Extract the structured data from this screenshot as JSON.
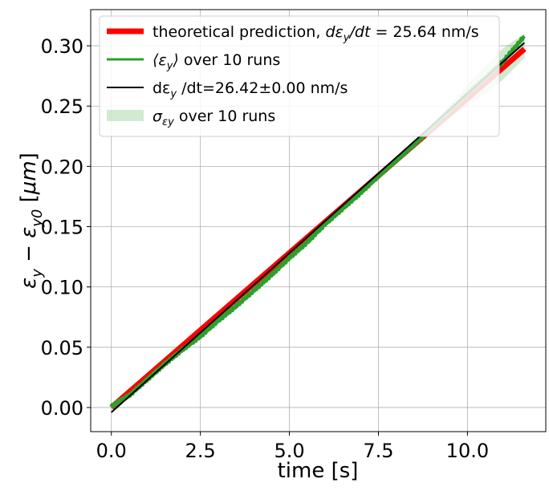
{
  "chart_data": {
    "type": "line",
    "xlabel": "time [s]",
    "ylabel": "εy − εy0 [μm]",
    "xlim": [
      -0.58,
      12.2
    ],
    "ylim": [
      -0.02,
      0.33
    ],
    "x_ticks": [
      0.0,
      2.5,
      5.0,
      7.5,
      10.0
    ],
    "x_tick_labels": [
      "0.0",
      "2.5",
      "5.0",
      "7.5",
      "10.0"
    ],
    "y_ticks": [
      0.0,
      0.05,
      0.1,
      0.15,
      0.2,
      0.25,
      0.3
    ],
    "y_tick_labels": [
      "0.00",
      "0.05",
      "0.10",
      "0.15",
      "0.20",
      "0.25",
      "0.30"
    ],
    "grid": true,
    "legend_position": "upper-left",
    "colors": {
      "theory": "#ff0000",
      "mean": "#2ca02c",
      "fit": "#000000",
      "band": "#2ca02c"
    },
    "series": [
      {
        "name": "theoretical prediction, dεy/dt = 25.64 nm/s",
        "style": "thick-line",
        "x": [
          0.0,
          11.6
        ],
        "y": [
          0.0,
          0.2974
        ]
      },
      {
        "name": "⟨εy⟩ over 10 runs",
        "style": "line",
        "x": [
          0.0,
          0.5,
          1.0,
          1.5,
          2.0,
          2.5,
          3.0,
          3.5,
          4.0,
          4.5,
          5.0,
          5.5,
          6.0,
          6.5,
          7.0,
          7.5,
          8.0,
          8.5,
          9.0,
          9.5,
          10.0,
          10.5,
          11.0,
          11.6
        ],
        "y": [
          0.001,
          0.01,
          0.023,
          0.036,
          0.048,
          0.059,
          0.072,
          0.084,
          0.097,
          0.11,
          0.124,
          0.137,
          0.152,
          0.165,
          0.178,
          0.192,
          0.205,
          0.218,
          0.232,
          0.246,
          0.26,
          0.273,
          0.287,
          0.308
        ]
      },
      {
        "name": "dεy/dt=26.42±0.00 nm/s",
        "style": "thin-line",
        "x": [
          0.0,
          11.6
        ],
        "y": [
          -0.004,
          0.3025
        ]
      },
      {
        "name": "σεy over 10 runs",
        "style": "band",
        "x": [
          0.0,
          8.5,
          9.0,
          9.5,
          10.0,
          10.5,
          11.0,
          11.6
        ],
        "y_low": [
          0.0,
          0.218,
          0.229,
          0.24,
          0.25,
          0.26,
          0.272,
          0.29
        ],
        "y_high": [
          0.0,
          0.218,
          0.235,
          0.251,
          0.268,
          0.283,
          0.298,
          0.31
        ]
      }
    ],
    "legend": [
      {
        "key": "theory",
        "prefix": "theoretical prediction, ",
        "math": "dε",
        "sub": "y",
        "math_tail": "/dt",
        "suffix": " = 25.64 nm/s"
      },
      {
        "key": "mean",
        "prefix": "",
        "math": "⟨ε",
        "sub": "y",
        "math_tail": "⟩",
        "suffix": " over 10 runs"
      },
      {
        "key": "fit",
        "prefix": "dε",
        "math": "",
        "sub": "y",
        "math_tail": "",
        "suffix": "/dt=26.42±0.00 nm/s"
      },
      {
        "key": "band",
        "prefix": "",
        "math": "σ",
        "sub": "εy",
        "math_tail": "",
        "suffix": " over 10 runs"
      }
    ]
  }
}
